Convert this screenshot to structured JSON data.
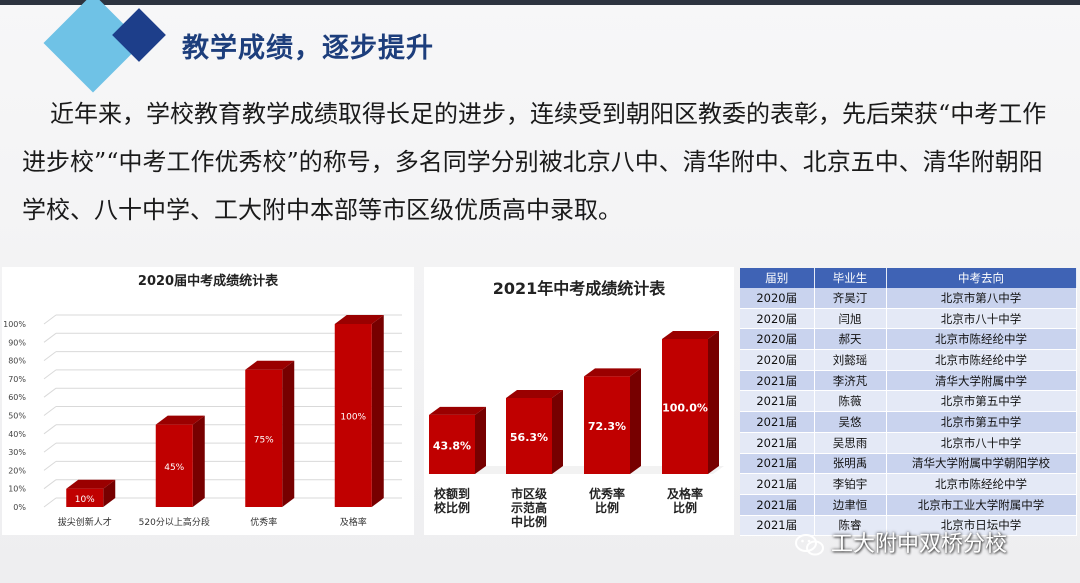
{
  "header": {
    "title": "教学成绩，逐步提升"
  },
  "intro": "近年来，学校教育教学成绩取得长足的进步，连续受到朝阳区教委的表彰，先后荣获“中考工作进步校”“中考工作优秀校”的称号，多名同学分别被北京八中、清华附中、北京五中、清华附朝阳学校、八十中学、工大附中本部等市区级优质高中录取。",
  "chart_data": [
    {
      "type": "bar",
      "title": "2020届中考成绩统计表",
      "categories": [
        "拔尖创新人才",
        "520分以上高分段",
        "优秀率",
        "及格率"
      ],
      "values": [
        10,
        45,
        75,
        100
      ],
      "value_labels": [
        "10%",
        "45%",
        "75%",
        "100%"
      ],
      "y_ticks": [
        "0%",
        "10%",
        "20%",
        "30%",
        "40%",
        "50%",
        "60%",
        "70%",
        "80%",
        "90%",
        "100%"
      ],
      "ylim": [
        0,
        100
      ],
      "grid": true,
      "color": "#c00000"
    },
    {
      "type": "bar",
      "title": "2021年中考成绩统计表",
      "categories": [
        "校额到校比例",
        "市区级示范高中比例",
        "优秀率比例",
        "及格率比例"
      ],
      "category_lines": [
        [
          "校额到",
          "校比例"
        ],
        [
          "市区级",
          "示范高",
          "中比例"
        ],
        [
          "优秀率",
          "比例"
        ],
        [
          "及格率",
          "比例"
        ]
      ],
      "values": [
        43.8,
        56.3,
        72.3,
        100.0
      ],
      "value_labels": [
        "43.8%",
        "56.3%",
        "72.3%",
        "100.0%"
      ],
      "ylim": [
        0,
        100
      ],
      "grid": false,
      "color": "#c00000"
    }
  ],
  "table": {
    "headers": [
      "届别",
      "毕业生",
      "中考去向"
    ],
    "rows": [
      [
        "2020届",
        "齐昊汀",
        "北京市第八中学"
      ],
      [
        "2020届",
        "闫旭",
        "北京市八十中学"
      ],
      [
        "2020届",
        "郝天",
        "北京市陈经纶中学"
      ],
      [
        "2020届",
        "刘懿瑶",
        "北京市陈经纶中学"
      ],
      [
        "2021届",
        "李济芃",
        "清华大学附属中学"
      ],
      [
        "2021届",
        "陈薇",
        "北京市第五中学"
      ],
      [
        "2021届",
        "吴悠",
        "北京市第五中学"
      ],
      [
        "2021届",
        "吴思雨",
        "北京市八十中学"
      ],
      [
        "2021届",
        "张明禹",
        "清华大学附属中学朝阳学校"
      ],
      [
        "2021届",
        "李铂宇",
        "北京市陈经纶中学"
      ],
      [
        "2021届",
        "边聿恒",
        "北京市工业大学附属中学"
      ],
      [
        "2021届",
        "陈睿",
        "北京市日坛中学"
      ]
    ]
  },
  "watermark": {
    "text": "工大附中双桥分校",
    "icon": "wechat-icon"
  }
}
